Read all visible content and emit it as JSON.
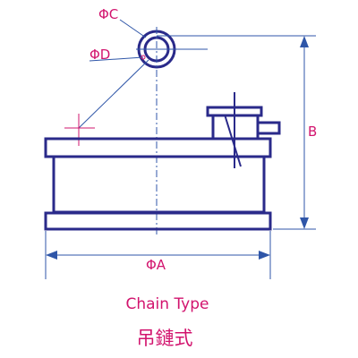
{
  "labels": {
    "phi_c": "ΦC",
    "phi_d": "ΦD",
    "b": "B",
    "phi_a": "ΦA"
  },
  "caption": {
    "english": "Chain Type",
    "chinese": "吊鏈式"
  },
  "colors": {
    "outline": "#2a2a8a",
    "annotation": "#d2146e",
    "leader": "#2f56a8"
  }
}
